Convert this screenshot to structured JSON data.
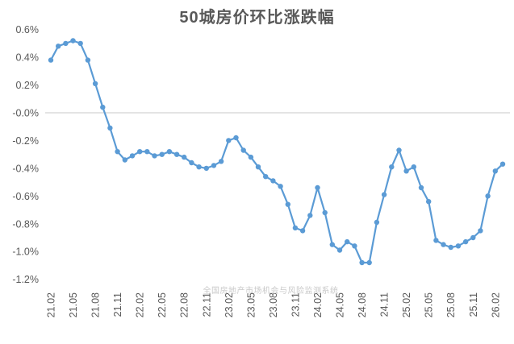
{
  "title": "50城房价环比涨跌幅",
  "watermark": "全国房地产市场机会与风险监测系统",
  "colors": {
    "line": "#5B9BD5",
    "marker": "#5B9BD5",
    "title_text": "#595959",
    "axis_label": "#595959",
    "zero_gridline": "#C9C9C9",
    "watermark_text": "#C9C9C9",
    "background": "#FFFFFF"
  },
  "chart_data": {
    "type": "line",
    "title": "50城房价环比涨跌幅",
    "xlabel": "",
    "ylabel": "",
    "legend": "none",
    "grid": "zero-line-only",
    "marker": "circle",
    "ylim": [
      -1.2,
      0.6
    ],
    "y_tick_step": 0.2,
    "y_tick_labels": [
      "0.6%",
      "0.4%",
      "0.2%",
      "0.0%",
      "-0.2%",
      "-0.4%",
      "-0.6%",
      "-0.8%",
      "-1.0%",
      "-1.2%"
    ],
    "x_label_interval": 3,
    "x_tick_labels": [
      "21.02",
      "21.05",
      "21.08",
      "21.11",
      "22.02",
      "22.05",
      "22.08",
      "22.11",
      "23.02",
      "23.05",
      "23.08",
      "23.11",
      "24.02",
      "24.05",
      "24.08",
      "24.11",
      "25.02",
      "25.05",
      "25.08",
      "25.11",
      "26.02"
    ],
    "x": [
      "21.02",
      "21.03",
      "21.04",
      "21.05",
      "21.06",
      "21.07",
      "21.08",
      "21.09",
      "21.10",
      "21.11",
      "21.12",
      "22.01",
      "22.02",
      "22.03",
      "22.04",
      "22.05",
      "22.06",
      "22.07",
      "22.08",
      "22.09",
      "22.10",
      "22.11",
      "22.12",
      "23.01",
      "23.02",
      "23.03",
      "23.04",
      "23.05",
      "23.06",
      "23.07",
      "23.08",
      "23.09",
      "23.10",
      "23.11",
      "23.12",
      "24.01",
      "24.02",
      "24.03",
      "24.04",
      "24.05",
      "24.06",
      "24.07",
      "24.08",
      "24.09",
      "24.10",
      "24.11",
      "24.12",
      "25.01",
      "25.02",
      "25.03",
      "25.04",
      "25.05",
      "25.06",
      "25.07",
      "25.08",
      "25.09",
      "25.10",
      "25.11",
      "25.12",
      "26.01",
      "26.02",
      "26.03"
    ],
    "values": [
      0.38,
      0.48,
      0.5,
      0.52,
      0.5,
      0.38,
      0.21,
      0.04,
      -0.11,
      -0.28,
      -0.34,
      -0.31,
      -0.28,
      -0.28,
      -0.31,
      -0.3,
      -0.28,
      -0.3,
      -0.32,
      -0.36,
      -0.39,
      -0.4,
      -0.38,
      -0.35,
      -0.2,
      -0.18,
      -0.27,
      -0.32,
      -0.39,
      -0.46,
      -0.49,
      -0.53,
      -0.66,
      -0.83,
      -0.85,
      -0.74,
      -0.54,
      -0.72,
      -0.95,
      -0.99,
      -0.93,
      -0.96,
      -1.08,
      -1.08,
      -0.79,
      -0.59,
      -0.39,
      -0.27,
      -0.42,
      -0.39,
      -0.54,
      -0.64,
      -0.92,
      -0.95,
      -0.97,
      -0.96,
      -0.93,
      -0.9,
      -0.85,
      -0.6,
      -0.42,
      -0.37
    ],
    "unit": "%"
  }
}
